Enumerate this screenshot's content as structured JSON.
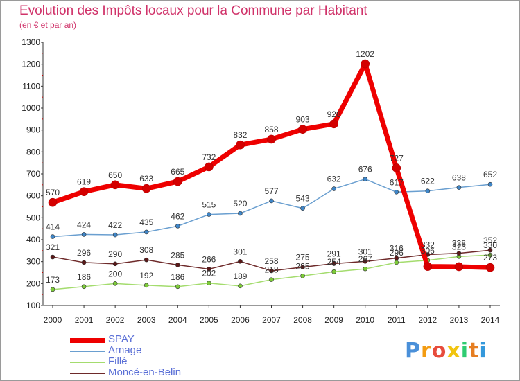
{
  "header": {
    "title": "Evolution des Impôts locaux pour la Commune par Habitant",
    "subtitle": "(en € et par an)"
  },
  "logo": {
    "text": "Proxiti",
    "colors": [
      "#4a90d9",
      "#f39c12",
      "#e74c3c",
      "#f1c40f",
      "#2ecc71",
      "#e67e22",
      "#3498db"
    ]
  },
  "chart_data": {
    "type": "line",
    "x": [
      2000,
      2001,
      2002,
      2003,
      2004,
      2005,
      2006,
      2007,
      2008,
      2009,
      2010,
      2011,
      2012,
      2013,
      2014
    ],
    "ylim": [
      100,
      1300
    ],
    "yticks": [
      100,
      200,
      300,
      400,
      500,
      600,
      700,
      800,
      900,
      1000,
      1100,
      1200,
      1300
    ],
    "grid": false,
    "legend_position": "bottom-left",
    "series": [
      {
        "name": "SPAY",
        "color": "#ee0000",
        "marker": "#d40000",
        "width": 7,
        "values": [
          570,
          619,
          650,
          633,
          665,
          732,
          832,
          858,
          903,
          928,
          1202,
          727,
          278,
          277,
          273
        ],
        "labels": [
          "570",
          "619",
          "650",
          "633",
          "665",
          "732",
          "832",
          "858",
          "903",
          "928",
          "1202",
          "727",
          "",
          "",
          "273"
        ]
      },
      {
        "name": "Arnage",
        "color": "#6a9fd0",
        "marker": "#3f86c8",
        "width": 1.5,
        "values": [
          414,
          424,
          422,
          435,
          462,
          515,
          520,
          577,
          543,
          632,
          676,
          617,
          622,
          638,
          652
        ],
        "labels": [
          "414",
          "424",
          "422",
          "435",
          "462",
          "515",
          "520",
          "577",
          "543",
          "632",
          "676",
          "617",
          "622",
          "638",
          "652"
        ]
      },
      {
        "name": "Fillé",
        "color": "#a4dc6e",
        "marker": "#7ccb38",
        "width": 1.5,
        "values": [
          173,
          186,
          200,
          192,
          186,
          202,
          189,
          218,
          235,
          254,
          267,
          296,
          306,
          323,
          330
        ],
        "labels": [
          "173",
          "186",
          "200",
          "192",
          "186",
          "202",
          "189",
          "218",
          "235",
          "254",
          "267",
          "296",
          "306",
          "323",
          "330"
        ]
      },
      {
        "name": "Moncé-en-Belin",
        "color": "#6e2a2a",
        "marker": "#5a1818",
        "width": 1.5,
        "values": [
          321,
          296,
          290,
          308,
          285,
          266,
          301,
          258,
          275,
          291,
          301,
          316,
          332,
          338,
          352
        ],
        "labels": [
          "321",
          "296",
          "290",
          "308",
          "285",
          "266",
          "301",
          "258",
          "275",
          "291",
          "301",
          "316",
          "332",
          "338",
          "352"
        ]
      }
    ]
  }
}
